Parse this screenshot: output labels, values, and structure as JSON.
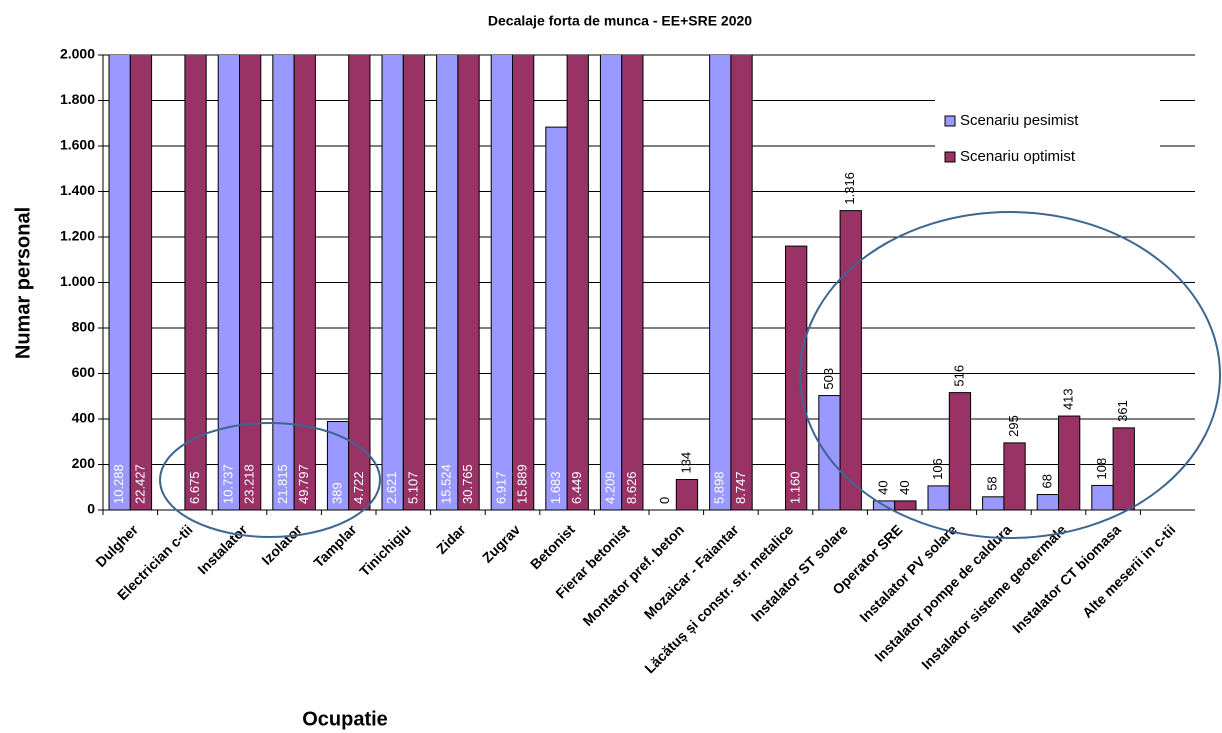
{
  "chart_data": {
    "type": "bar",
    "title": "Decalaje forta de munca  - EE+SRE 2020",
    "x_label": "Ocupatie",
    "y_label": "Numar personal",
    "categories": [
      "Dulgher",
      "Electrician c-tii",
      "Instalator",
      "Izolator",
      "Tamplar",
      "Tinichigiu",
      "Zidar",
      "Zugrav",
      "Betonist",
      "Fierar betonist",
      "Montator pref. beton",
      "Mozaicar - Faiantar",
      "Lăcătuș și constr. str. metalice",
      "Instalator ST solare",
      "Operator SRE",
      "Instalator PV solare",
      "Instalator pompe de caldura",
      "Instalator sisteme geotermale",
      "Instalator CT biomasa",
      "Alte meserii in c-tii"
    ],
    "series": [
      {
        "name": "Scenariu pesimist",
        "color": "#9999ff",
        "values": [
          10288,
          null,
          10737,
          21815,
          389,
          2621,
          15524,
          6917,
          1683,
          4209,
          0,
          5898,
          null,
          503,
          40,
          106,
          58,
          68,
          108,
          null
        ],
        "value_labels": [
          "10.288",
          null,
          "10.737",
          "21.815",
          "389",
          "2.621",
          "15.524",
          "6.917",
          "1.683",
          "4.209",
          "0",
          "5.898",
          null,
          "503",
          "40",
          "106",
          "58",
          "68",
          "108",
          null
        ]
      },
      {
        "name": "Scenariu optimist",
        "color": "#993366",
        "values": [
          22427,
          6675,
          23218,
          49797,
          4722,
          5107,
          30765,
          15889,
          6449,
          8626,
          134,
          8747,
          1160,
          1316,
          40,
          516,
          295,
          413,
          361,
          null
        ],
        "value_labels": [
          "22.427",
          "6.675",
          "23.218",
          "49.797",
          "4.722",
          "5.107",
          "30.765",
          "15.889",
          "6.449",
          "8.626",
          "134",
          "8.747",
          "1.160",
          "1.316",
          "40",
          "516",
          "295",
          "413",
          "361",
          null
        ]
      }
    ],
    "ylim": [
      0,
      2000
    ],
    "yticks": [
      0,
      200,
      400,
      600,
      800,
      {
        "value": 1000,
        "label": "1.000"
      },
      {
        "value": 1200,
        "label": "1.200"
      },
      {
        "value": 1400,
        "label": "1.400"
      },
      {
        "value": 1600,
        "label": "1.600"
      },
      {
        "value": 1800,
        "label": "1.800"
      },
      {
        "value": 2000,
        "label": "2.000"
      }
    ],
    "grid": true,
    "legend": "upper right"
  }
}
